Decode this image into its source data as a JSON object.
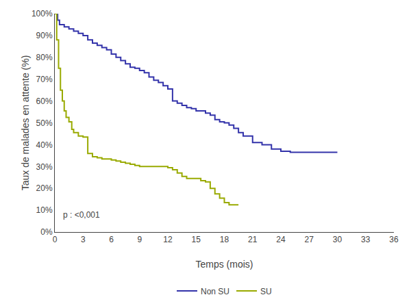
{
  "chart_data": {
    "type": "step",
    "title": "",
    "xlabel": "Temps (mois)",
    "ylabel": "Taux de malades en attente (%)",
    "xlim": [
      0,
      36
    ],
    "ylim": [
      0,
      1.0
    ],
    "xticks": [
      0,
      3,
      6,
      9,
      12,
      15,
      18,
      21,
      24,
      27,
      30,
      33,
      36
    ],
    "yticks": [
      {
        "value": 0,
        "label": "0%"
      },
      {
        "value": 0.1,
        "label": "10%"
      },
      {
        "value": 0.2,
        "label": "20%"
      },
      {
        "value": 0.3,
        "label": "30%"
      },
      {
        "value": 0.4,
        "label": "40%"
      },
      {
        "value": 0.5,
        "label": "50%"
      },
      {
        "value": 0.6,
        "label": "60%"
      },
      {
        "value": 0.7,
        "label": "70%"
      },
      {
        "value": 0.8,
        "label": "80%"
      },
      {
        "value": 0.9,
        "label": "90%"
      },
      {
        "value": 1.0,
        "label": "100%"
      }
    ],
    "annotations": [
      "p : <0,001"
    ],
    "grid": false,
    "legend": "bottom",
    "series": [
      {
        "name": "Non SU",
        "color": "#3333aa",
        "x": [
          0,
          0.3,
          0.5,
          1.0,
          1.5,
          2.0,
          2.5,
          3.0,
          3.5,
          4.0,
          4.5,
          5.0,
          5.5,
          6.0,
          6.5,
          7.0,
          7.5,
          8.0,
          8.5,
          9.0,
          9.5,
          10.0,
          10.5,
          11.0,
          11.5,
          12.0,
          12.5,
          13.0,
          13.5,
          14.0,
          14.5,
          15.0,
          15.5,
          16.0,
          16.5,
          17.0,
          17.5,
          18.0,
          18.5,
          19.0,
          19.5,
          20.0,
          21.0,
          22.0,
          23.0,
          24.0,
          25.0,
          26.0,
          27.0,
          28.0,
          29.0,
          30.0
        ],
        "values": [
          1.0,
          0.97,
          0.95,
          0.94,
          0.93,
          0.92,
          0.91,
          0.9,
          0.88,
          0.865,
          0.855,
          0.845,
          0.835,
          0.815,
          0.8,
          0.785,
          0.77,
          0.755,
          0.75,
          0.74,
          0.73,
          0.71,
          0.695,
          0.685,
          0.67,
          0.655,
          0.6,
          0.59,
          0.58,
          0.57,
          0.565,
          0.555,
          0.555,
          0.545,
          0.535,
          0.515,
          0.505,
          0.5,
          0.49,
          0.475,
          0.455,
          0.44,
          0.41,
          0.4,
          0.38,
          0.37,
          0.365,
          0.365,
          0.365,
          0.365,
          0.365,
          0.365
        ]
      },
      {
        "name": "SU",
        "color": "#99aa00",
        "x": [
          0,
          0.2,
          0.4,
          0.6,
          0.8,
          1.0,
          1.2,
          1.5,
          1.8,
          2.0,
          2.5,
          3.0,
          3.5,
          4.0,
          4.5,
          5.0,
          5.5,
          6.0,
          6.5,
          7.0,
          7.5,
          8.0,
          8.5,
          9.0,
          9.5,
          10.0,
          10.5,
          11.0,
          11.5,
          12.0,
          12.5,
          13.0,
          13.5,
          14.0,
          14.5,
          15.0,
          15.5,
          16.0,
          16.5,
          17.0,
          17.5,
          18.0,
          18.5,
          19.0,
          19.5
        ],
        "values": [
          1.0,
          0.88,
          0.75,
          0.65,
          0.6,
          0.555,
          0.525,
          0.505,
          0.47,
          0.455,
          0.44,
          0.435,
          0.36,
          0.345,
          0.34,
          0.335,
          0.335,
          0.33,
          0.325,
          0.32,
          0.315,
          0.31,
          0.305,
          0.3,
          0.3,
          0.3,
          0.3,
          0.3,
          0.3,
          0.295,
          0.285,
          0.27,
          0.255,
          0.245,
          0.245,
          0.245,
          0.235,
          0.23,
          0.2,
          0.175,
          0.155,
          0.135,
          0.125,
          0.125,
          0.125
        ]
      }
    ]
  }
}
